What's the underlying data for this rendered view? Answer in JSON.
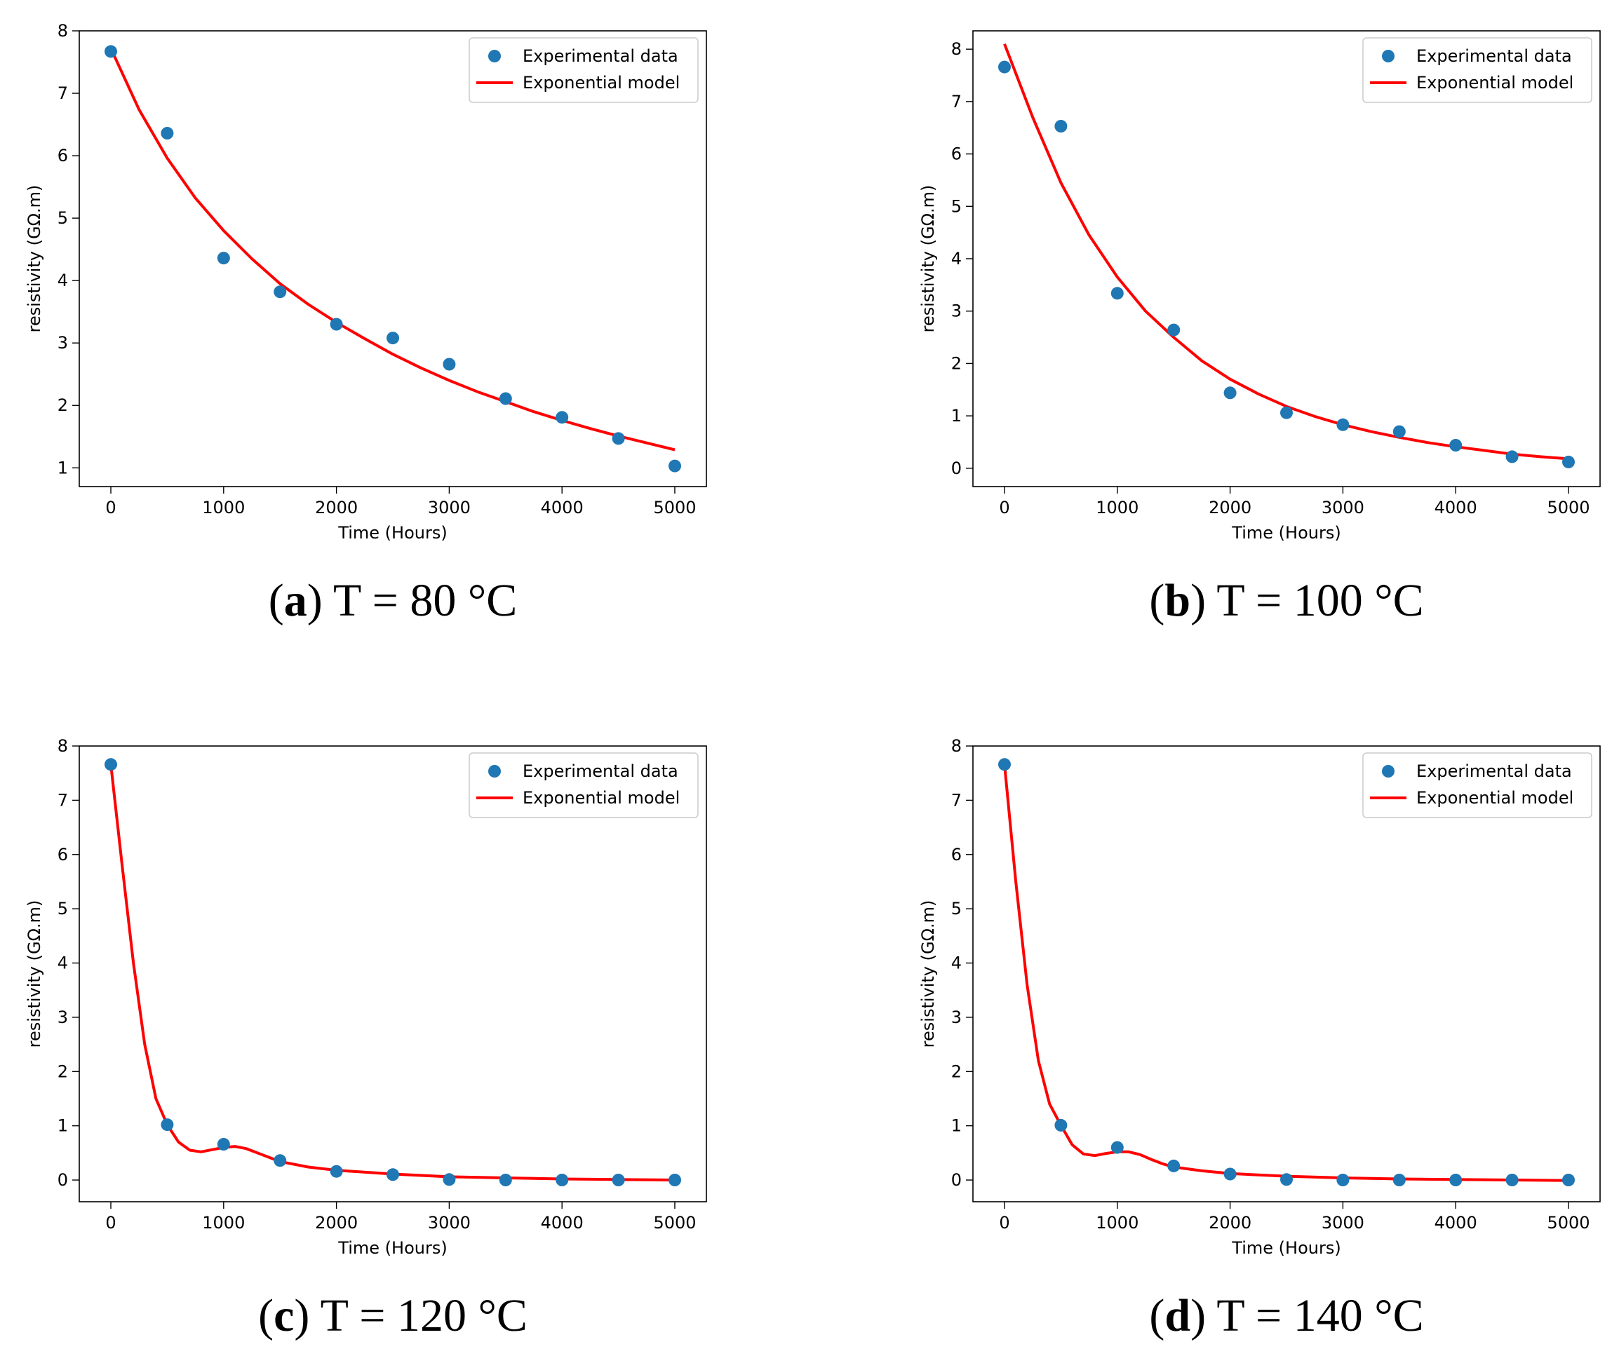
{
  "chart_data": [
    {
      "type": "scatter",
      "panel_letter": "a",
      "caption": "T = 80 °C",
      "xlabel": "Time (Hours)",
      "ylabel": "resistivity (GΩ.m)",
      "xlim": [
        -280,
        5280
      ],
      "ylim": [
        0.7,
        8.0
      ],
      "xticks": [
        0,
        1000,
        2000,
        3000,
        4000,
        5000
      ],
      "xtick_labels": [
        "0",
        "1000",
        "2000",
        "3000",
        "4000",
        "5000"
      ],
      "yticks": [
        1,
        2,
        3,
        4,
        5,
        6,
        7,
        8
      ],
      "ytick_labels": [
        "1",
        "2",
        "3",
        "4",
        "5",
        "6",
        "7",
        "8"
      ],
      "legend": {
        "position": "top-right",
        "entries": [
          "Experimental data",
          "Exponential model"
        ]
      },
      "series": [
        {
          "name": "Experimental data",
          "kind": "scatter",
          "color": "#1f77b4",
          "x": [
            0,
            500,
            1000,
            1500,
            2000,
            2500,
            3000,
            3500,
            4000,
            4500,
            5000
          ],
          "y": [
            7.67,
            6.36,
            4.36,
            3.82,
            3.3,
            3.08,
            2.66,
            2.11,
            1.81,
            1.47,
            1.03
          ]
        },
        {
          "name": "Exponential model",
          "kind": "line",
          "color": "#ff0000",
          "x": [
            0,
            250,
            500,
            750,
            1000,
            1250,
            1500,
            1750,
            2000,
            2250,
            2500,
            2750,
            3000,
            3250,
            3500,
            3750,
            4000,
            4250,
            4500,
            4750,
            5000
          ],
          "y": [
            7.72,
            6.74,
            5.96,
            5.32,
            4.8,
            4.35,
            3.95,
            3.62,
            3.33,
            3.07,
            2.82,
            2.6,
            2.4,
            2.22,
            2.06,
            1.9,
            1.76,
            1.63,
            1.51,
            1.4,
            1.29
          ]
        }
      ]
    },
    {
      "type": "scatter",
      "panel_letter": "b",
      "caption": "T = 100 °C",
      "xlabel": "Time (Hours)",
      "ylabel": "resistivity (GΩ.m)",
      "xlim": [
        -280,
        5280
      ],
      "ylim": [
        -0.35,
        8.35
      ],
      "xticks": [
        0,
        1000,
        2000,
        3000,
        4000,
        5000
      ],
      "xtick_labels": [
        "0",
        "1000",
        "2000",
        "3000",
        "4000",
        "5000"
      ],
      "yticks": [
        0,
        1,
        2,
        3,
        4,
        5,
        6,
        7,
        8
      ],
      "ytick_labels": [
        "0",
        "1",
        "2",
        "3",
        "4",
        "5",
        "6",
        "7",
        "8"
      ],
      "legend": {
        "position": "top-right",
        "entries": [
          "Experimental data",
          "Exponential model"
        ]
      },
      "series": [
        {
          "name": "Experimental data",
          "kind": "scatter",
          "color": "#1f77b4",
          "x": [
            0,
            500,
            1000,
            1500,
            2000,
            2500,
            3000,
            3500,
            4000,
            4500,
            5000
          ],
          "y": [
            7.66,
            6.53,
            3.34,
            2.64,
            1.44,
            1.06,
            0.83,
            0.7,
            0.44,
            0.22,
            0.12
          ]
        },
        {
          "name": "Exponential model",
          "kind": "line",
          "color": "#ff0000",
          "x": [
            0,
            250,
            500,
            750,
            1000,
            1250,
            1500,
            1750,
            2000,
            2250,
            2500,
            2750,
            3000,
            3250,
            3500,
            3750,
            4000,
            4250,
            4500,
            4750,
            5000
          ],
          "y": [
            8.1,
            6.7,
            5.45,
            4.45,
            3.65,
            3.0,
            2.5,
            2.05,
            1.7,
            1.42,
            1.18,
            0.99,
            0.83,
            0.7,
            0.59,
            0.49,
            0.41,
            0.34,
            0.27,
            0.22,
            0.18
          ]
        }
      ]
    },
    {
      "type": "scatter",
      "panel_letter": "c",
      "caption": "T = 120 °C",
      "xlabel": "Time (Hours)",
      "ylabel": "resistivity (GΩ.m)",
      "xlim": [
        -280,
        5280
      ],
      "ylim": [
        -0.4,
        8.0
      ],
      "xticks": [
        0,
        1000,
        2000,
        3000,
        4000,
        5000
      ],
      "xtick_labels": [
        "0",
        "1000",
        "2000",
        "3000",
        "4000",
        "5000"
      ],
      "yticks": [
        0,
        1,
        2,
        3,
        4,
        5,
        6,
        7,
        8
      ],
      "ytick_labels": [
        "0",
        "1",
        "2",
        "3",
        "4",
        "5",
        "6",
        "7",
        "8"
      ],
      "legend": {
        "position": "top-right",
        "entries": [
          "Experimental data",
          "Exponential model"
        ]
      },
      "series": [
        {
          "name": "Experimental data",
          "kind": "scatter",
          "color": "#1f77b4",
          "x": [
            0,
            500,
            1000,
            1500,
            2000,
            2500,
            3000,
            3500,
            4000,
            4500,
            5000
          ],
          "y": [
            7.66,
            1.02,
            0.66,
            0.36,
            0.16,
            0.1,
            0.01,
            0.0,
            0.0,
            0.0,
            0.0
          ]
        },
        {
          "name": "Exponential model",
          "kind": "line",
          "color": "#ff0000",
          "x": [
            0,
            100,
            200,
            300,
            400,
            500,
            600,
            700,
            800,
            900,
            1000,
            1100,
            1200,
            1300,
            1400,
            1500,
            1750,
            2000,
            2500,
            3000,
            3500,
            4000,
            4500,
            5000
          ],
          "y": [
            7.66,
            5.8,
            4.0,
            2.5,
            1.5,
            1.02,
            0.7,
            0.55,
            0.52,
            0.56,
            0.6,
            0.62,
            0.58,
            0.5,
            0.42,
            0.34,
            0.24,
            0.18,
            0.11,
            0.06,
            0.04,
            0.02,
            0.01,
            0.0
          ]
        }
      ]
    },
    {
      "type": "scatter",
      "panel_letter": "d",
      "caption": "T = 140 °C",
      "xlabel": "Time (Hours)",
      "ylabel": "resistivity (GΩ.m)",
      "xlim": [
        -280,
        5280
      ],
      "ylim": [
        -0.4,
        8.0
      ],
      "xticks": [
        0,
        1000,
        2000,
        3000,
        4000,
        5000
      ],
      "xtick_labels": [
        "0",
        "1000",
        "2000",
        "3000",
        "4000",
        "5000"
      ],
      "yticks": [
        0,
        1,
        2,
        3,
        4,
        5,
        6,
        7,
        8
      ],
      "ytick_labels": [
        "0",
        "1",
        "2",
        "3",
        "4",
        "5",
        "6",
        "7",
        "8"
      ],
      "legend": {
        "position": "top-right",
        "entries": [
          "Experimental data",
          "Exponential model"
        ]
      },
      "series": [
        {
          "name": "Experimental data",
          "kind": "scatter",
          "color": "#1f77b4",
          "x": [
            0,
            500,
            1000,
            1500,
            2000,
            2500,
            3000,
            3500,
            4000,
            4500,
            5000
          ],
          "y": [
            7.66,
            1.01,
            0.6,
            0.26,
            0.11,
            0.01,
            0.0,
            0.0,
            0.0,
            0.0,
            0.0
          ]
        },
        {
          "name": "Exponential model",
          "kind": "line",
          "color": "#ff0000",
          "x": [
            0,
            100,
            200,
            300,
            400,
            500,
            600,
            700,
            800,
            900,
            1000,
            1100,
            1200,
            1300,
            1400,
            1500,
            1750,
            2000,
            2500,
            3000,
            3500,
            4000,
            4500,
            5000
          ],
          "y": [
            7.66,
            5.5,
            3.6,
            2.2,
            1.4,
            1.01,
            0.65,
            0.48,
            0.45,
            0.49,
            0.52,
            0.52,
            0.47,
            0.38,
            0.3,
            0.24,
            0.17,
            0.12,
            0.07,
            0.04,
            0.02,
            0.01,
            0.0,
            -0.01
          ]
        }
      ]
    }
  ]
}
